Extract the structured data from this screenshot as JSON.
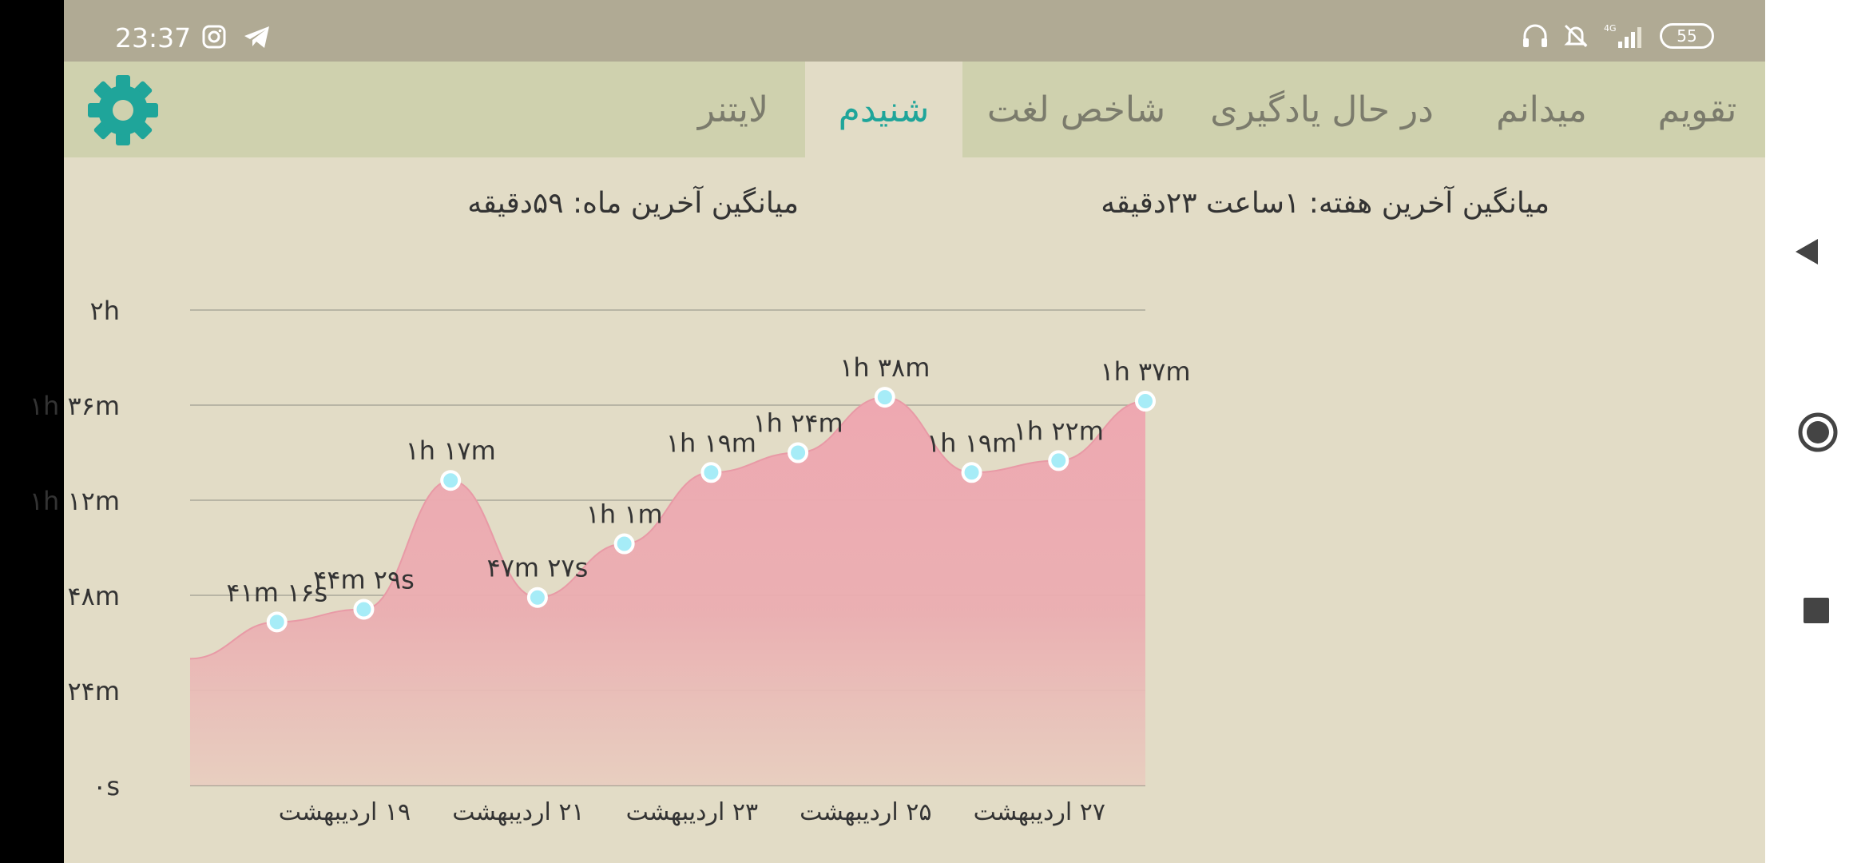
{
  "status_bar": {
    "time": "23:37",
    "left_icons": [
      "instagram-icon",
      "telegram-icon"
    ],
    "right_icons": [
      "headset-icon",
      "bell-off-icon",
      "signal-4g-icon"
    ],
    "battery": "55"
  },
  "tabs": [
    {
      "label": "تقویم",
      "active": false
    },
    {
      "label": "میدانم",
      "active": false
    },
    {
      "label": "در حال یادگیری",
      "active": false
    },
    {
      "label": "شاخص لغت",
      "active": false
    },
    {
      "label": "شنیدم",
      "active": true
    },
    {
      "label": "لایتنر",
      "active": false
    }
  ],
  "stats": {
    "week_avg": "میانگین آخرین هفته: ۱ساعت  ۲۳دقیقه",
    "month_avg": "میانگین آخرین ماه: ۵۹دقیقه"
  },
  "colors": {
    "accent": "#1fa59a",
    "area_fill": "#eea8b1",
    "point": "#a6ecf7"
  },
  "chart_data": {
    "type": "area",
    "unit": "minutes",
    "y_ticks": [
      {
        "value": 0,
        "label": "۰s"
      },
      {
        "value": 24,
        "label": "۲۴m"
      },
      {
        "value": 48,
        "label": "۴۸m"
      },
      {
        "value": 72,
        "label": "۱h ۱۲m"
      },
      {
        "value": 96,
        "label": "۱h ۳۶m"
      },
      {
        "value": 120,
        "label": "۲h"
      }
    ],
    "ylim": [
      0,
      120
    ],
    "x_ticks": [
      {
        "index": 2,
        "label": "۱۹ اردیبهشت"
      },
      {
        "index": 4,
        "label": "۲۱ اردیبهشت"
      },
      {
        "index": 6,
        "label": "۲۳ اردیبهشت"
      },
      {
        "index": 8,
        "label": "۲۵ اردیبهشت"
      },
      {
        "index": 10,
        "label": "۲۷ اردیبهشت"
      }
    ],
    "start_value": 32,
    "points": [
      {
        "index": 1,
        "value": 41.27,
        "label": "۴۱m ۱۶s"
      },
      {
        "index": 2,
        "value": 44.48,
        "label": "۴۴m ۲۹s"
      },
      {
        "index": 3,
        "value": 77,
        "label": "۱h ۱۷m"
      },
      {
        "index": 4,
        "value": 47.45,
        "label": "۴۷m ۲۷s"
      },
      {
        "index": 5,
        "value": 61,
        "label": "۱h ۱m"
      },
      {
        "index": 6,
        "value": 79,
        "label": "۱h ۱۹m"
      },
      {
        "index": 7,
        "value": 84,
        "label": "۱h ۲۴m"
      },
      {
        "index": 8,
        "value": 98,
        "label": "۱h ۳۸m"
      },
      {
        "index": 9,
        "value": 79,
        "label": "۱h ۱۹m"
      },
      {
        "index": 10,
        "value": 82,
        "label": "۱h ۲۲m"
      },
      {
        "index": 11,
        "value": 97,
        "label": "۱h ۳۷m"
      }
    ],
    "grid": true
  }
}
